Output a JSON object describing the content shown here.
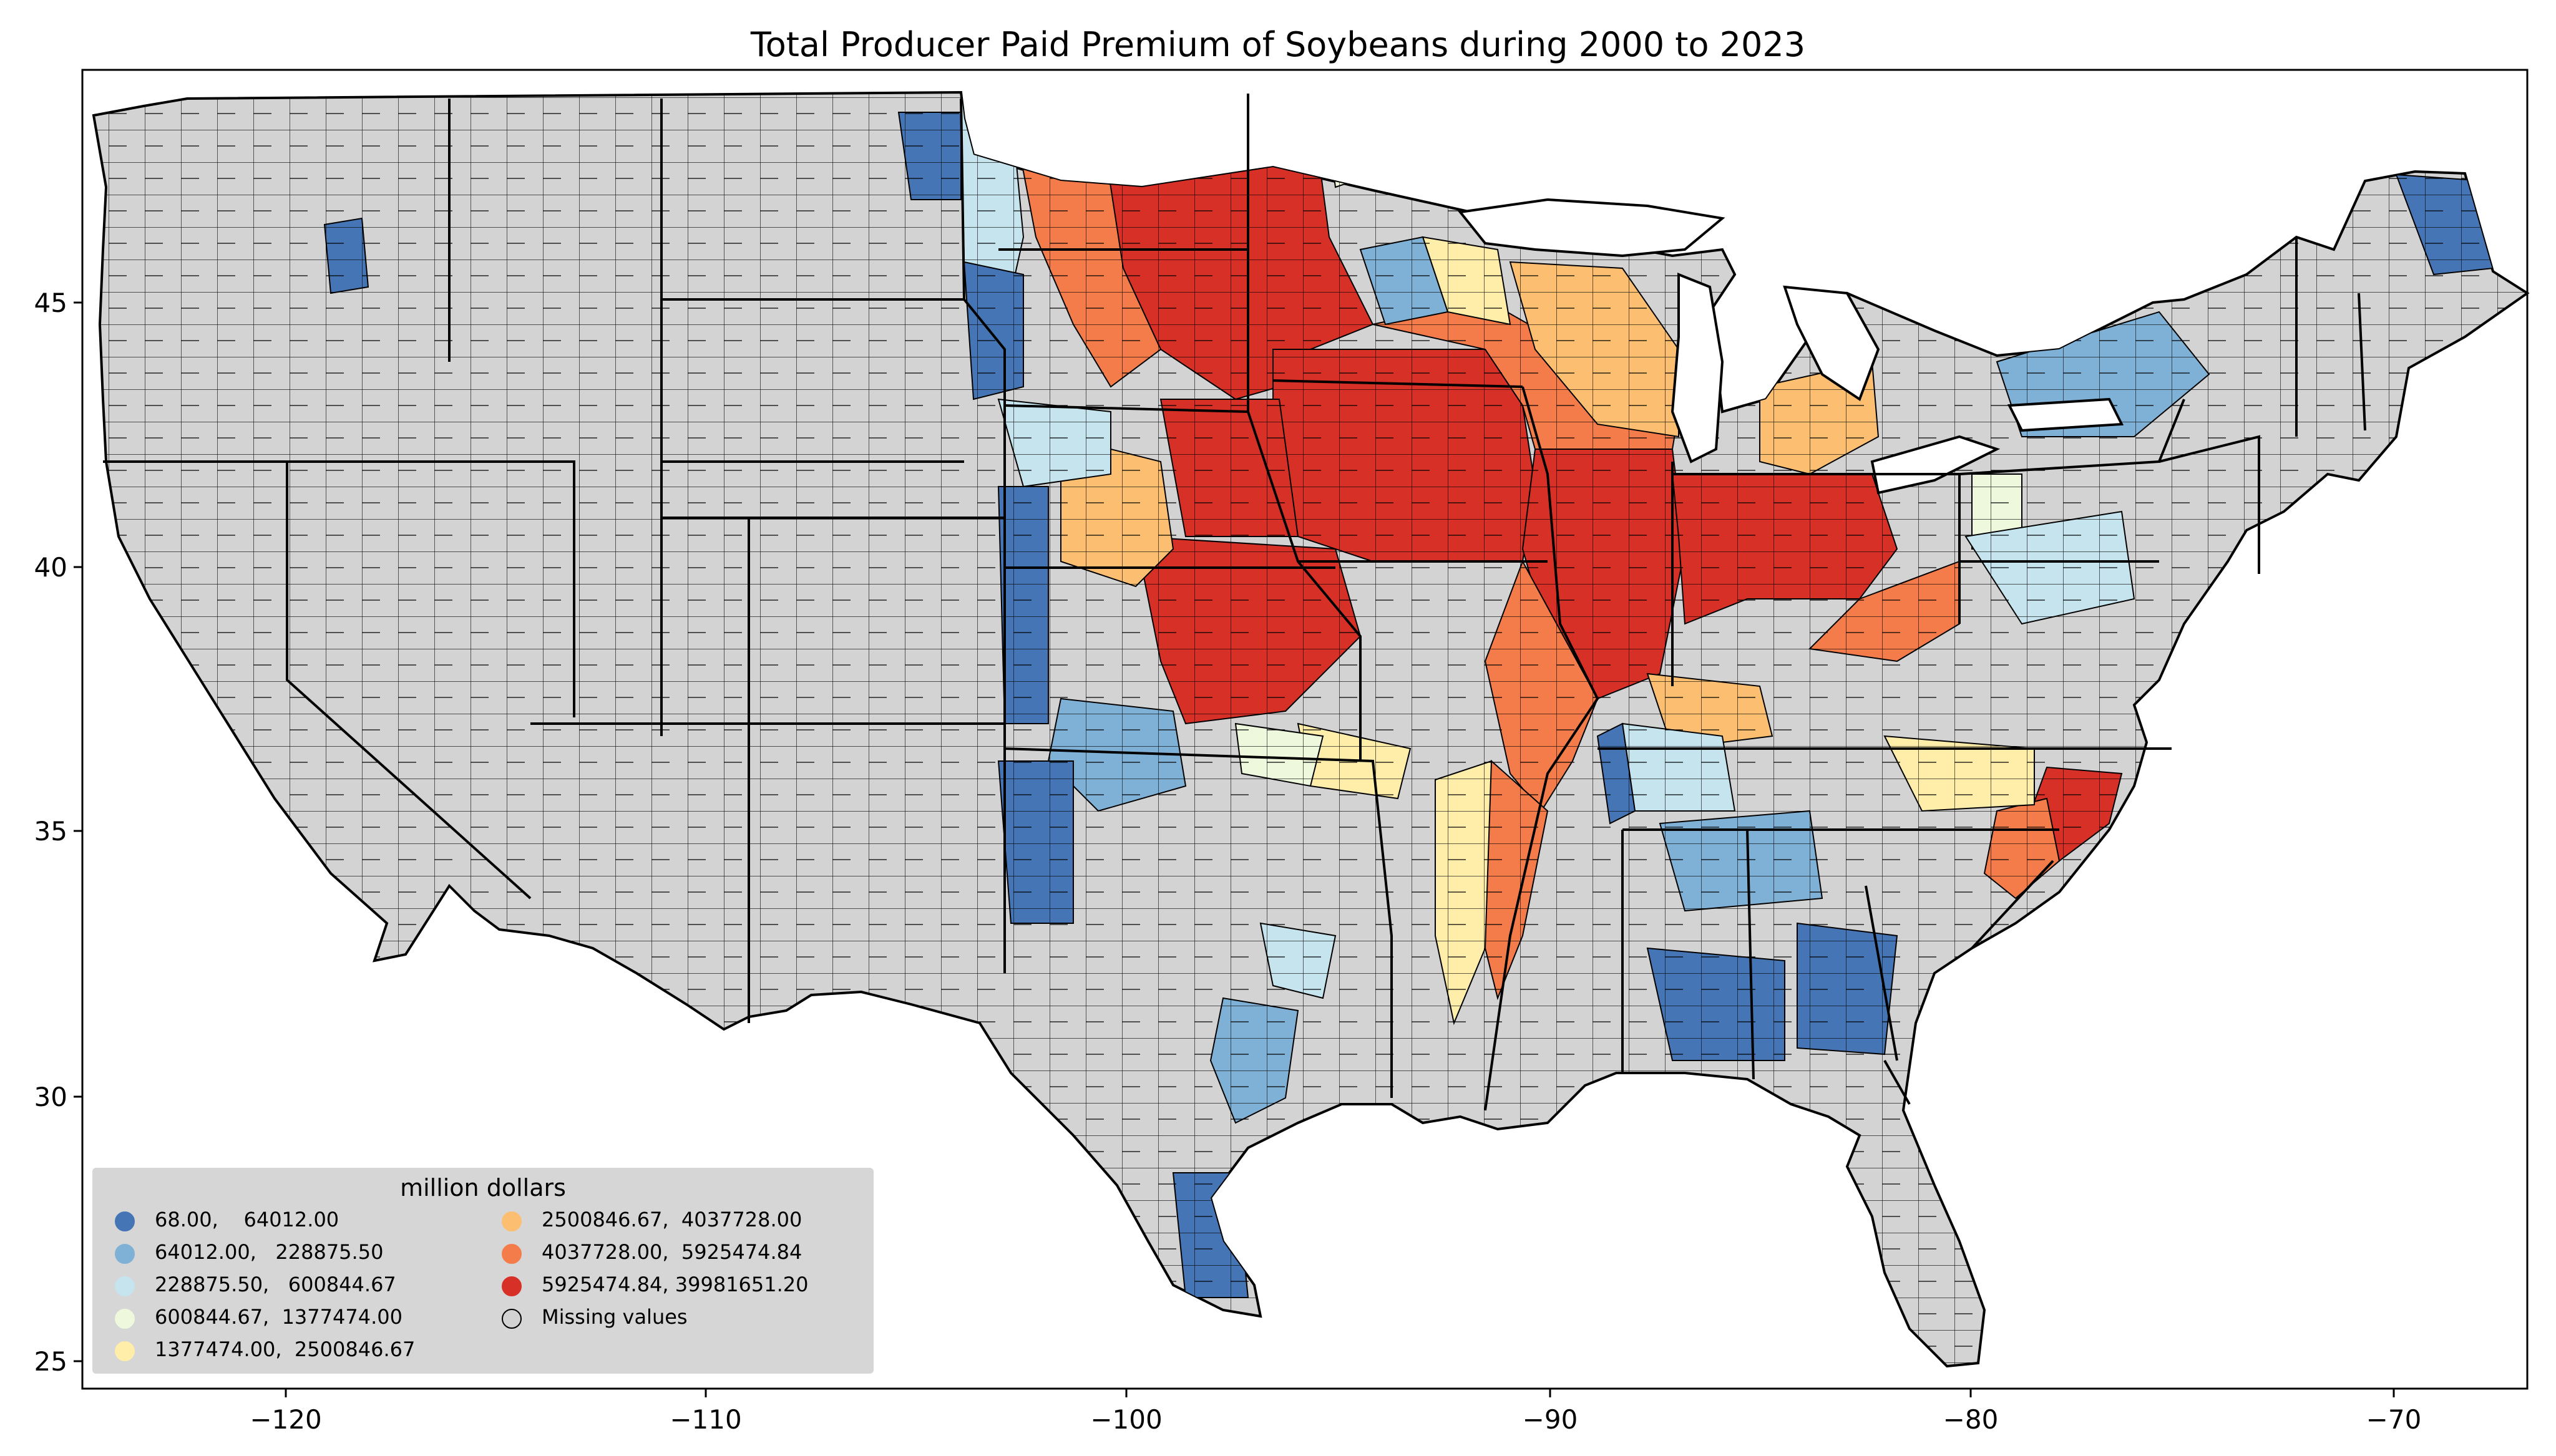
{
  "title": "Total Producer Paid Premium of Soybeans during 2000 to 2023",
  "map": {
    "type": "choropleth",
    "region": "Contiguous United States (counties)",
    "missing_color": "#d3d3d3",
    "x_ticks": [
      "−120",
      "−110",
      "−100",
      "−90",
      "−80",
      "−70"
    ],
    "y_ticks": [
      "45",
      "40",
      "35",
      "30",
      "25"
    ]
  },
  "legend": {
    "title": "million dollars",
    "entries": [
      {
        "label": "68.00,    64012.00",
        "color": "#4575b4"
      },
      {
        "label": "64012.00,   228875.50",
        "color": "#7fb1d6"
      },
      {
        "label": "228875.50,   600844.67",
        "color": "#c6e4ee"
      },
      {
        "label": "600844.67,  1377474.00",
        "color": "#eef8dd"
      },
      {
        "label": "1377474.00,  2500846.67",
        "color": "#ffedaa"
      },
      {
        "label": "2500846.67,  4037728.00",
        "color": "#fcbf71"
      },
      {
        "label": "4037728.00,  5925474.84",
        "color": "#f47c4a"
      },
      {
        "label": "5925474.84, 39981651.20",
        "color": "#d73027"
      },
      {
        "label": "Missing values",
        "color": "#d3d3d3"
      }
    ]
  }
}
